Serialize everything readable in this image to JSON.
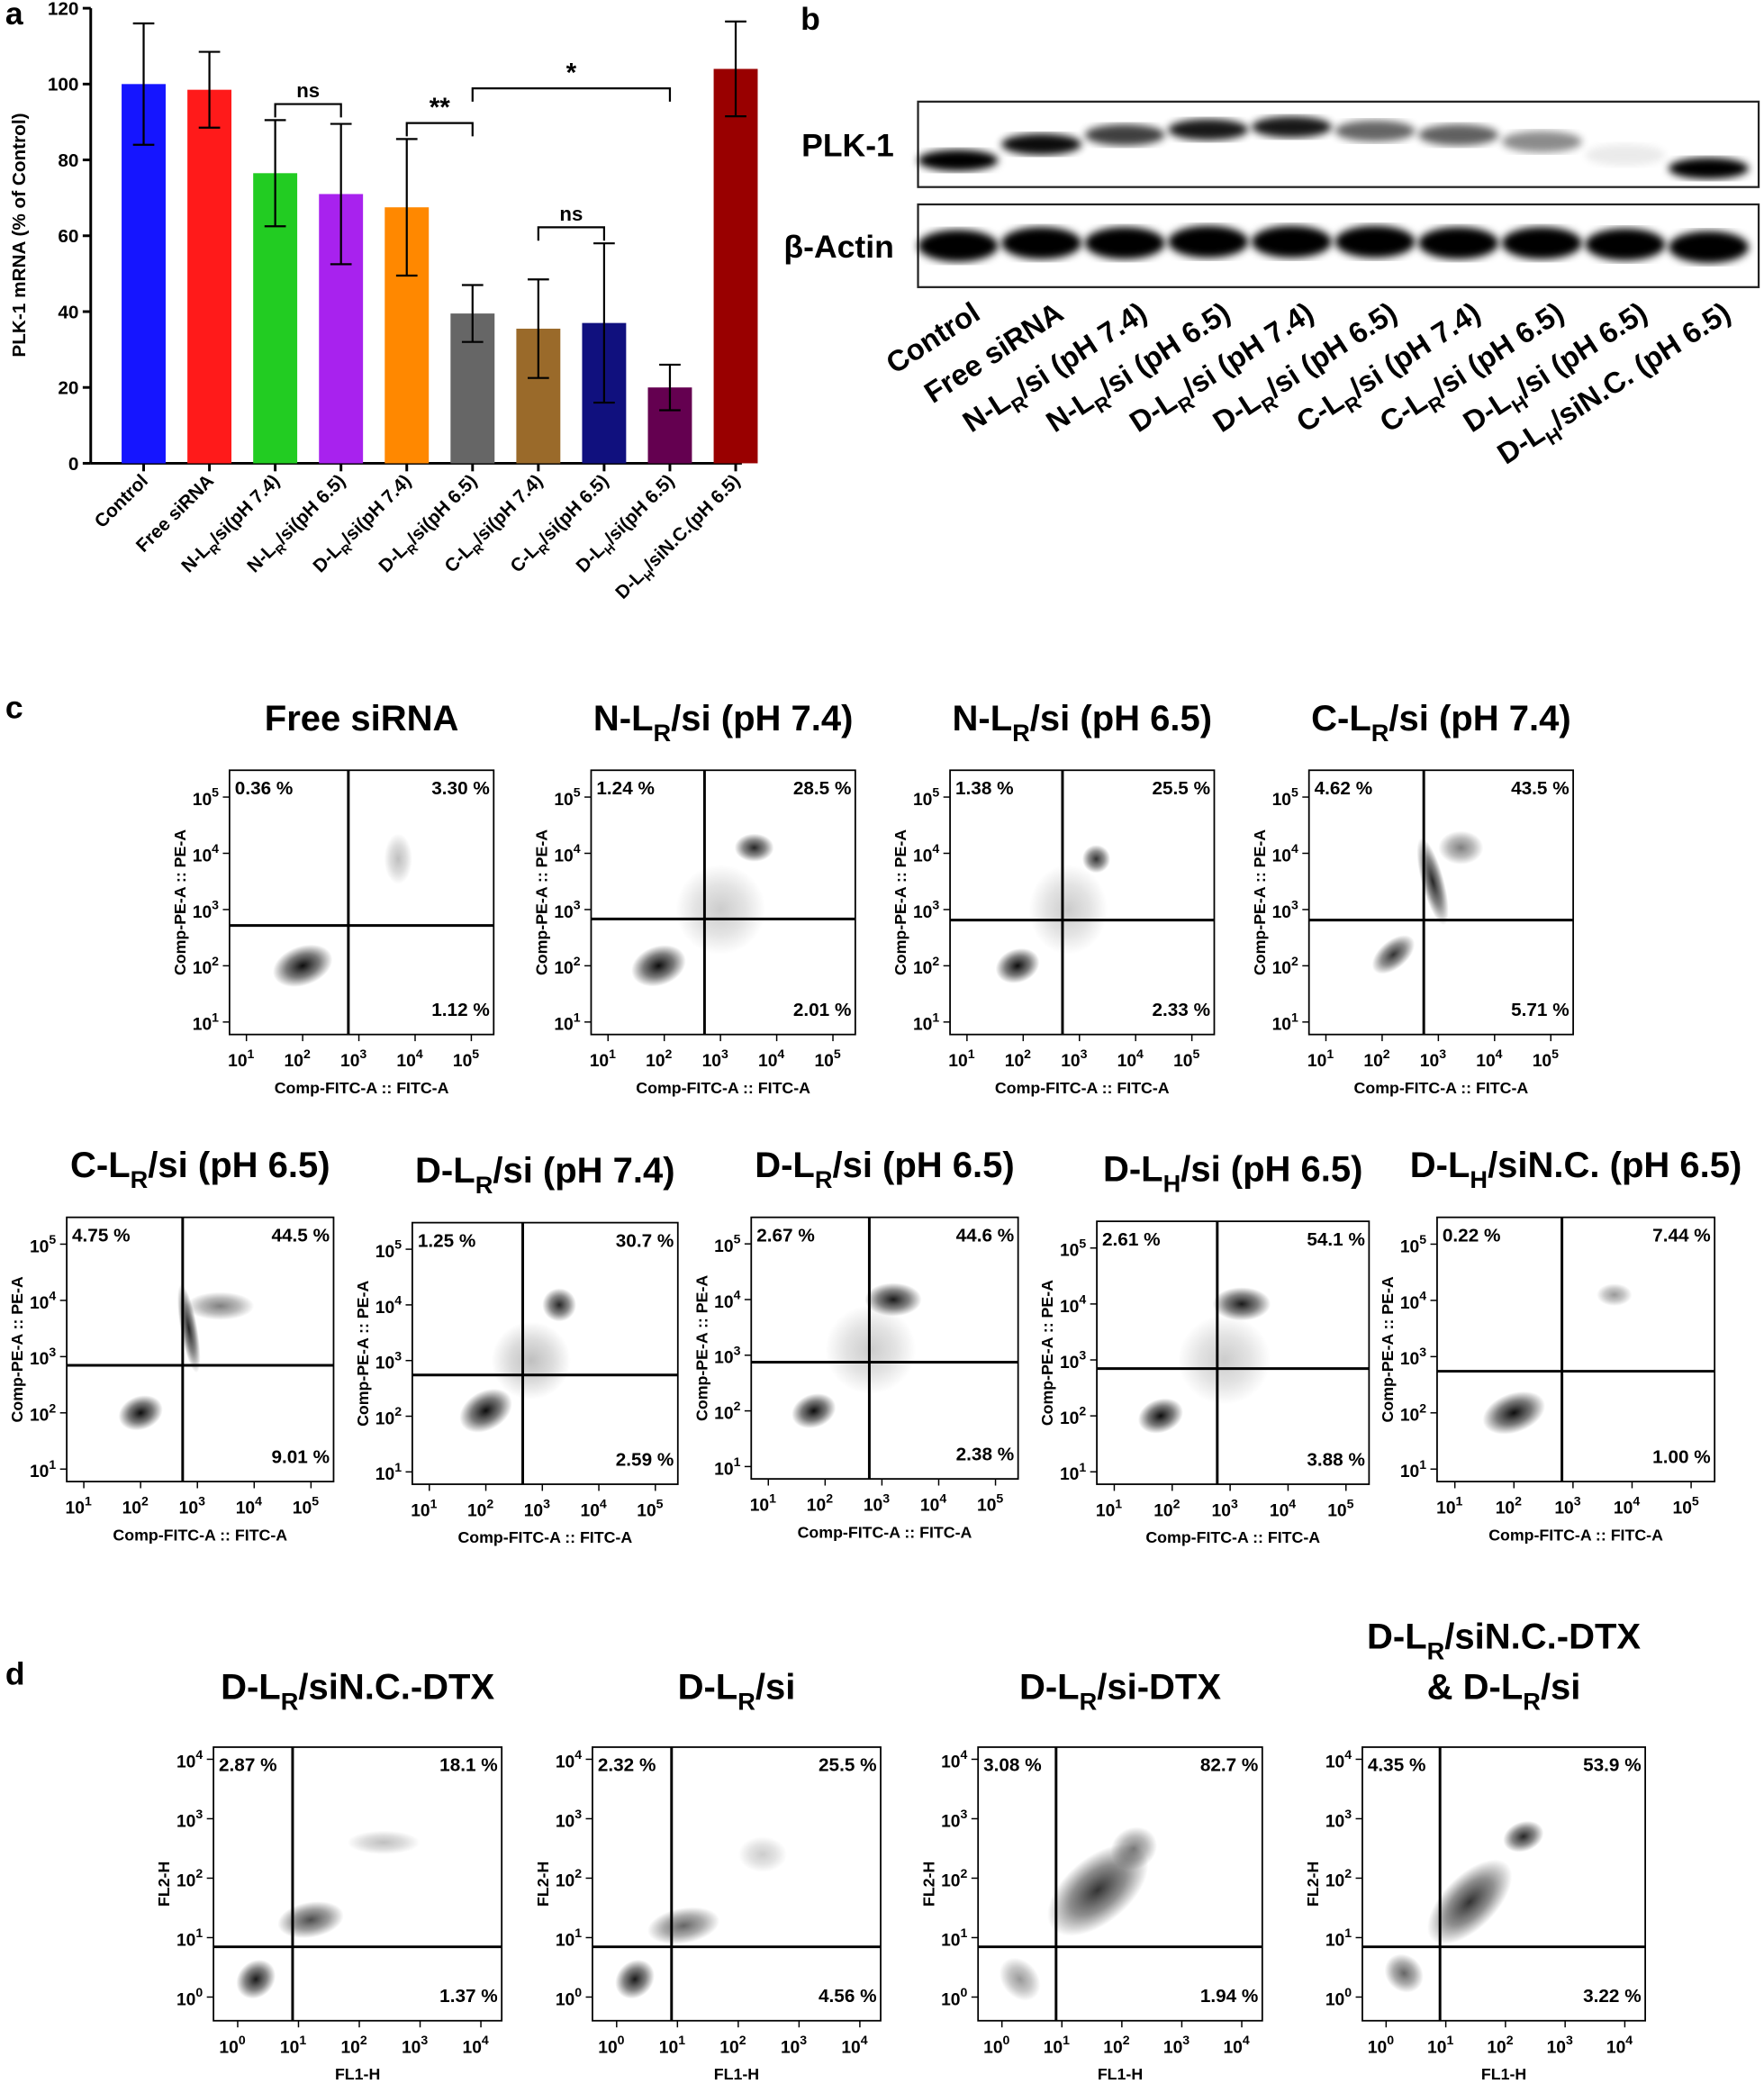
{
  "chart_data": [
    {
      "type": "bar",
      "panel_label": "a",
      "y_label": "PLK-1 mRNA (% of Control)",
      "categories": [
        [
          "Control"
        ],
        [
          "Free siRNA"
        ],
        [
          "N-L",
          "R",
          "/si(pH 7.4)"
        ],
        [
          "N-L",
          "R",
          "/si(pH 6.5)"
        ],
        [
          "D-L",
          "R",
          "/si(pH 7.4)"
        ],
        [
          "D-L",
          "R",
          "/si(pH 6.5)"
        ],
        [
          "C-L",
          "R",
          "/si(pH 7.4)"
        ],
        [
          "C-L",
          "R",
          "/si(pH 6.5)"
        ],
        [
          "D-L",
          "H",
          "/si(pH 6.5)"
        ],
        [
          "D-L",
          "H",
          "/siN.C.(pH 6.5)"
        ]
      ],
      "values": [
        100,
        98.5,
        76.5,
        71,
        67.5,
        39.5,
        35.5,
        37,
        20,
        104
      ],
      "errors": [
        16,
        10,
        14,
        18.5,
        18,
        7.5,
        13,
        21,
        6,
        12.5
      ],
      "colors": [
        "#1515ff",
        "#ff1a1a",
        "#22cc22",
        "#a822ee",
        "#ff8800",
        "#666666",
        "#9a6a2a",
        "#10107e",
        "#640050",
        "#990000"
      ],
      "ylim": [
        0,
        120
      ],
      "yticks": [
        0,
        20,
        40,
        60,
        80,
        100,
        120
      ],
      "annotations": [
        {
          "text": "ns",
          "between": [
            2,
            3
          ]
        },
        {
          "text": "**",
          "between": [
            4,
            5
          ]
        },
        {
          "text": "ns",
          "between": [
            6,
            7
          ]
        },
        {
          "text": "*",
          "between": [
            5,
            8
          ]
        }
      ]
    },
    {
      "type": "blot",
      "panel_label": "b",
      "rows": [
        "PLK-1",
        "β-Actin"
      ],
      "lanes": [
        [
          "Control"
        ],
        [
          "Free siRNA"
        ],
        [
          "N-L",
          "R",
          "/si (pH 7.4)"
        ],
        [
          "N-L",
          "R",
          "/si (pH 6.5)"
        ],
        [
          "D-L",
          "R",
          "/si (pH 7.4)"
        ],
        [
          "D-L",
          "R",
          "/si (pH 6.5)"
        ],
        [
          "C-L",
          "R",
          "/si (pH 7.4)"
        ],
        [
          "C-L",
          "R",
          "/si (pH 6.5)"
        ],
        [
          "D-L",
          "H",
          "/si (pH 6.5)"
        ],
        [
          "D-L",
          "H",
          "/siN.C. (pH 6.5)"
        ]
      ]
    },
    {
      "type": "flow",
      "panel_label": "c",
      "x_label": "Comp-FITC-A :: FITC-A",
      "y_label": "Comp-PE-A :: PE-A",
      "log": true,
      "xlim": [
        5,
        250000
      ],
      "ylim": [
        6,
        300000
      ],
      "xticks": [
        {
          "value": 10,
          "label": [
            "10",
            "1"
          ]
        },
        {
          "value": 100,
          "label": [
            "10",
            "2"
          ]
        },
        {
          "value": 1000,
          "label": [
            "10",
            "3"
          ]
        },
        {
          "value": 10000,
          "label": [
            "10",
            "4"
          ]
        },
        {
          "value": 100000,
          "label": [
            "10",
            "5"
          ]
        }
      ],
      "yticks": [
        {
          "value": 10,
          "label": [
            "10",
            "1"
          ]
        },
        {
          "value": 100,
          "label": [
            "10",
            "2"
          ]
        },
        {
          "value": 1000,
          "label": [
            "10",
            "3"
          ]
        },
        {
          "value": 10000,
          "label": [
            "10",
            "4"
          ]
        },
        {
          "value": 100000,
          "label": [
            "10",
            "5"
          ]
        }
      ],
      "plots": [
        {
          "title": [
            [
              "Free siRNA"
            ]
          ],
          "gate": [
            650,
            520
          ],
          "quadrants": [
            "0.36 %",
            "3.30 %",
            "1.12 %"
          ]
        },
        {
          "title": [
            [
              "N-L",
              "R",
              "/si (pH 7.4)"
            ]
          ],
          "gate": [
            520,
            680
          ],
          "quadrants": [
            "1.24 %",
            "28.5 %",
            "2.01 %"
          ]
        },
        {
          "title": [
            [
              "N-L",
              "R",
              "/si (pH 6.5)"
            ]
          ],
          "gate": [
            500,
            650
          ],
          "quadrants": [
            "1.38 %",
            "25.5 %",
            "2.33 %"
          ]
        },
        {
          "title": [
            [
              "C-L",
              "R",
              "/si (pH 7.4)"
            ]
          ],
          "gate": [
            550,
            650
          ],
          "quadrants": [
            "4.62 %",
            "43.5 %",
            "5.71 %"
          ]
        },
        {
          "title": [
            [
              "C-L",
              "R",
              "/si (pH 6.5)"
            ]
          ],
          "gate": [
            550,
            700
          ],
          "quadrants": [
            "4.75 %",
            "44.5 %",
            "9.01 %"
          ]
        },
        {
          "title": [
            [
              "D-L",
              "R",
              "/si (pH 7.4)"
            ]
          ],
          "gate": [
            450,
            550
          ],
          "quadrants": [
            "1.25 %",
            "30.7 %",
            "2.59 %"
          ]
        },
        {
          "title": [
            [
              "D-L",
              "R",
              "/si (pH 6.5)"
            ]
          ],
          "gate": [
            600,
            750
          ],
          "quadrants": [
            "2.67 %",
            "44.6 %",
            "2.38 %"
          ]
        },
        {
          "title": [
            [
              "D-L",
              "H",
              "/si (pH 6.5)"
            ]
          ],
          "gate": [
            600,
            700
          ],
          "quadrants": [
            "2.61 %",
            "54.1 %",
            "3.88 %"
          ]
        },
        {
          "title": [
            [
              "D-L",
              "H",
              "/siN.C. (pH 6.5)"
            ]
          ],
          "gate": [
            650,
            550
          ],
          "quadrants": [
            "0.22 %",
            "7.44 %",
            "1.00 %"
          ]
        }
      ]
    },
    {
      "type": "flow",
      "panel_label": "d",
      "x_label": "FL1-H",
      "y_label": "FL2-H",
      "log": true,
      "xlim": [
        0.4,
        22000
      ],
      "ylim": [
        0.4,
        16000
      ],
      "xticks": [
        {
          "value": 1,
          "label": [
            "10",
            "0"
          ]
        },
        {
          "value": 10,
          "label": [
            "10",
            "1"
          ]
        },
        {
          "value": 100,
          "label": [
            "10",
            "2"
          ]
        },
        {
          "value": 1000,
          "label": [
            "10",
            "3"
          ]
        },
        {
          "value": 10000,
          "label": [
            "10",
            "4"
          ]
        }
      ],
      "yticks": [
        {
          "value": 1,
          "label": [
            "10",
            "0"
          ]
        },
        {
          "value": 10,
          "label": [
            "10",
            "1"
          ]
        },
        {
          "value": 100,
          "label": [
            "10",
            "2"
          ]
        },
        {
          "value": 1000,
          "label": [
            "10",
            "3"
          ]
        },
        {
          "value": 10000,
          "label": [
            "10",
            "4"
          ]
        }
      ],
      "plots": [
        {
          "title": [
            [
              "D-L",
              "R",
              "/siN.C.-DTX"
            ]
          ],
          "gate": [
            8,
            7
          ],
          "quadrants": [
            "2.87 %",
            "18.1 %",
            "1.37 %"
          ]
        },
        {
          "title": [
            [
              "D-L",
              "R",
              "/si"
            ]
          ],
          "gate": [
            8,
            7
          ],
          "quadrants": [
            "2.32 %",
            "25.5 %",
            "4.56 %"
          ]
        },
        {
          "title": [
            [
              "D-L",
              "R",
              "/si-DTX"
            ]
          ],
          "gate": [
            8,
            7
          ],
          "quadrants": [
            "3.08 %",
            "82.7 %",
            "1.94 %"
          ]
        },
        {
          "title": [
            [
              "D-L",
              "R",
              "/siN.C.-DTX"
            ],
            [
              "& D-L",
              "R",
              "/si"
            ]
          ],
          "gate": [
            8,
            7
          ],
          "quadrants": [
            "4.35 %",
            "53.9 %",
            "3.22 %"
          ]
        }
      ]
    }
  ]
}
